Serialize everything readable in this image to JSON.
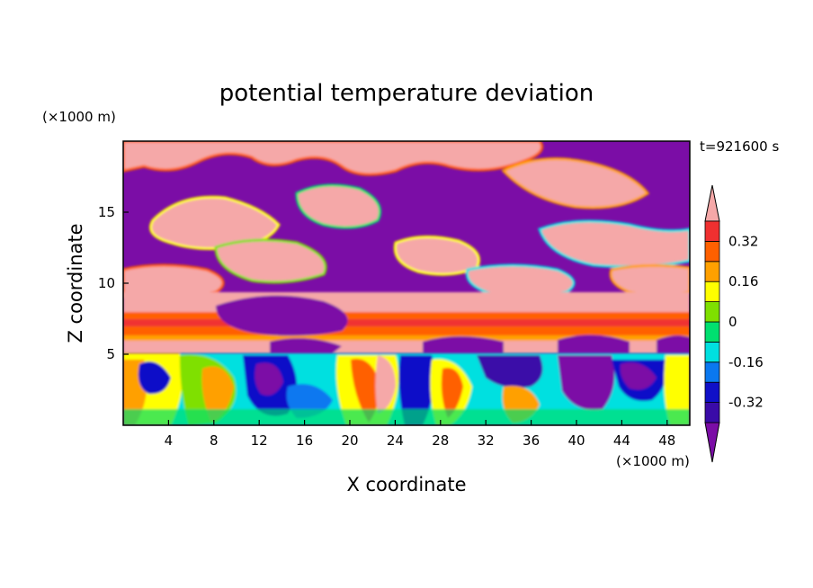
{
  "chart_data": {
    "type": "heatmap",
    "title": "potential temperature deviation",
    "xlabel": "X coordinate",
    "ylabel": "Z coordinate",
    "x_unit": "(×1000 m)",
    "y_unit": "(×1000 m)",
    "time_label": "t=921600 s",
    "xlim": [
      0,
      50
    ],
    "ylim": [
      0,
      20
    ],
    "x_ticks": [
      4,
      8,
      12,
      16,
      20,
      24,
      28,
      32,
      36,
      40,
      44,
      48
    ],
    "y_ticks": [
      5,
      10,
      15
    ],
    "colorbar": {
      "levels": [
        -0.4,
        -0.32,
        -0.24,
        -0.16,
        -0.08,
        0,
        0.08,
        0.16,
        0.24,
        0.32,
        0.4
      ],
      "tick_labels": [
        "0.32",
        "0.16",
        "0",
        "-0.16",
        "-0.32"
      ],
      "tick_values": [
        0.32,
        0.16,
        0,
        -0.16,
        -0.32
      ],
      "colors": [
        "#7B0DA6",
        "#3A0BA8",
        "#1010C8",
        "#0A78F0",
        "#00E0E0",
        "#00E070",
        "#7FE000",
        "#FFFF00",
        "#FFA000",
        "#FF6000",
        "#F03030",
        "#F5A8A8"
      ],
      "extend": "both"
    }
  }
}
